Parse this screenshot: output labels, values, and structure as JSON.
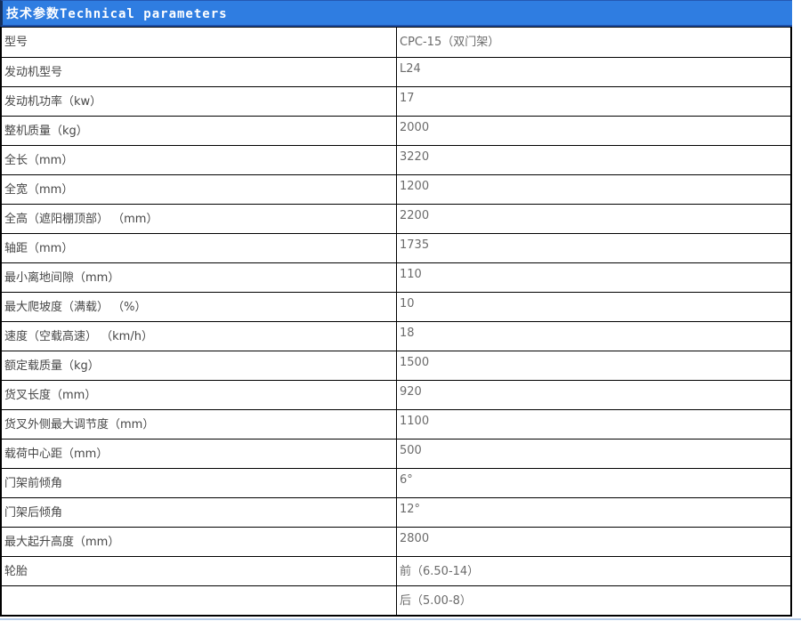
{
  "header": {
    "title": "技术参数Technical parameters"
  },
  "colors": {
    "header_bg": "#2F7DE1",
    "header_text": "#FFFFFF",
    "header_left_border": "#16305C",
    "header_bottom_line": "#1D4FA8",
    "table_border": "#000000",
    "label_text": "#474747",
    "value_text": "#6B6B6B",
    "page_bottom_rule": "#B7CDE9"
  },
  "table": {
    "rows": [
      {
        "label": "型号",
        "value": "CPC-15（双门架）"
      },
      {
        "label": "发动机型号",
        "value": "L24"
      },
      {
        "label": "发动机功率（kw）",
        "value": "17"
      },
      {
        "label": "整机质量（kg）",
        "value": "2000"
      },
      {
        "label": "全长（mm）",
        "value": "3220"
      },
      {
        "label": "全宽（mm）",
        "value": "1200"
      },
      {
        "label": "全高（遮阳棚顶部） （mm）",
        "value": "2200"
      },
      {
        "label": "轴距（mm）",
        "value": "1735"
      },
      {
        "label": "最小离地间隙（mm）",
        "value": "110"
      },
      {
        "label": "最大爬坡度（满载） （%）",
        "value": "10"
      },
      {
        "label": "速度（空载高速） （km/h）",
        "value": "18"
      },
      {
        "label": "额定载质量（kg）",
        "value": "1500"
      },
      {
        "label": "货叉长度（mm）",
        "value": "920"
      },
      {
        "label": "货叉外侧最大调节度（mm）",
        "value": "1100"
      },
      {
        "label": "载荷中心距（mm）",
        "value": "500"
      },
      {
        "label": "门架前倾角",
        "value": "6°"
      },
      {
        "label": "门架后倾角",
        "value": "12°"
      },
      {
        "label": "最大起升高度（mm）",
        "value": "2800"
      },
      {
        "label": "轮胎",
        "value": "前（6.50-14）"
      },
      {
        "label": "",
        "value": "后（5.00-8）"
      }
    ]
  }
}
